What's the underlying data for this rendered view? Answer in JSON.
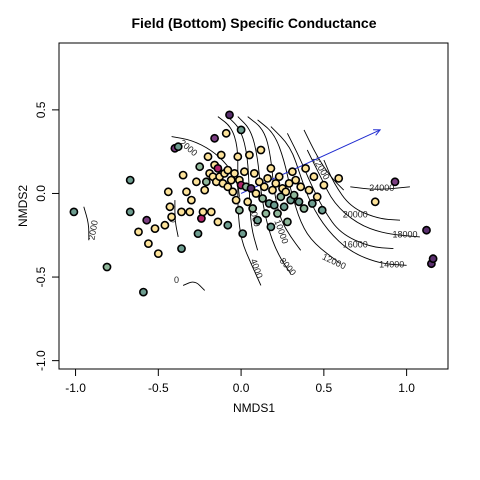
{
  "chart_data": {
    "type": "scatter",
    "title": "Field (Bottom) Specific Conductance",
    "xlabel": "NMDS1",
    "ylabel": "NMDS2",
    "xlim": [
      -1.1,
      1.25
    ],
    "ylim": [
      -1.05,
      0.9
    ],
    "x_ticks": [
      -1.0,
      -0.5,
      0.0,
      0.5,
      1.0
    ],
    "x_tick_labels": [
      "-1.0",
      "-0.5",
      "0.0",
      "0.5",
      "1.0"
    ],
    "y_ticks": [
      -1.0,
      -0.5,
      0.0,
      0.5
    ],
    "y_tick_labels": [
      "-1.0",
      "-0.5",
      "0.0",
      "0.5"
    ],
    "grid": false,
    "legend": "none",
    "colors": {
      "yellow": "#fde39a",
      "sage": "#8fb79a",
      "teal": "#6d9c8f",
      "purple": "#7b3f82",
      "dark_purple": "#5a2f6e",
      "magenta": "#b0226a"
    },
    "vector": {
      "x0": 0.0,
      "y0": 0.0,
      "x1": 0.84,
      "y1": 0.38,
      "color": "#1f2bd0"
    },
    "contours": [
      {
        "label": "0",
        "points": [
          [
            -0.35,
            -0.55
          ],
          [
            -0.28,
            -0.52
          ],
          [
            -0.22,
            -0.58
          ]
        ],
        "label_at": [
          -0.39,
          -0.52
        ],
        "angle": 0
      },
      {
        "label": "0",
        "points": [
          [
            -0.4,
            -0.04
          ],
          [
            -0.4,
            -0.16
          ],
          [
            -0.38,
            -0.26
          ]
        ],
        "label_at": [
          -0.41,
          -0.16
        ],
        "angle": -80
      },
      {
        "label": "2000",
        "points": [
          [
            -0.95,
            -0.08
          ],
          [
            -0.92,
            -0.18
          ],
          [
            -0.92,
            -0.28
          ]
        ],
        "label_at": [
          -0.89,
          -0.22
        ],
        "angle": -80
      },
      {
        "label": "2000",
        "points": [
          [
            -0.42,
            0.34
          ],
          [
            -0.3,
            0.32
          ],
          [
            -0.18,
            0.26
          ],
          [
            -0.08,
            0.17
          ],
          [
            -0.02,
            0.06
          ],
          [
            -0.01,
            -0.02
          ]
        ],
        "label_at": [
          -0.32,
          0.27
        ],
        "angle": 40
      },
      {
        "label": "4000",
        "points": [
          [
            -0.14,
            0.46
          ],
          [
            -0.06,
            0.4
          ],
          [
            -0.02,
            0.28
          ],
          [
            -0.02,
            0.1
          ],
          [
            -0.02,
            -0.1
          ],
          [
            0.0,
            -0.28
          ],
          [
            0.06,
            -0.42
          ],
          [
            0.12,
            -0.55
          ]
        ],
        "label_at": [
          0.09,
          -0.45
        ],
        "angle": 70
      },
      {
        "label": "6000",
        "points": [
          [
            -0.08,
            0.46
          ],
          [
            0.0,
            0.38
          ],
          [
            0.04,
            0.22
          ],
          [
            0.05,
            0.0
          ],
          [
            0.06,
            -0.2
          ],
          [
            0.1,
            -0.34
          ]
        ],
        "label_at": [
          0.08,
          -0.14
        ],
        "angle": 75
      },
      {
        "label": "8000",
        "points": [
          [
            -0.02,
            0.46
          ],
          [
            0.06,
            0.38
          ],
          [
            0.1,
            0.22
          ],
          [
            0.12,
            0.0
          ],
          [
            0.16,
            -0.2
          ],
          [
            0.22,
            -0.36
          ],
          [
            0.3,
            -0.48
          ]
        ],
        "label_at": [
          0.28,
          -0.44
        ],
        "angle": 50
      },
      {
        "label": "10000",
        "points": [
          [
            0.04,
            0.46
          ],
          [
            0.14,
            0.38
          ],
          [
            0.18,
            0.22
          ],
          [
            0.2,
            0.0
          ],
          [
            0.24,
            -0.16
          ],
          [
            0.3,
            -0.26
          ],
          [
            0.36,
            -0.34
          ]
        ],
        "label_at": [
          0.24,
          -0.23
        ],
        "angle": 70
      },
      {
        "label": "12000",
        "points": [
          [
            0.1,
            0.44
          ],
          [
            0.2,
            0.36
          ],
          [
            0.26,
            0.2
          ],
          [
            0.3,
            0.02
          ],
          [
            0.36,
            -0.18
          ],
          [
            0.44,
            -0.3
          ],
          [
            0.6,
            -0.42
          ]
        ],
        "label_at": [
          0.56,
          -0.41
        ],
        "angle": 25
      },
      {
        "label": "14000",
        "points": [
          [
            0.18,
            0.4
          ],
          [
            0.3,
            0.28
          ],
          [
            0.36,
            0.1
          ],
          [
            0.42,
            -0.06
          ],
          [
            0.52,
            -0.22
          ],
          [
            0.66,
            -0.35
          ],
          [
            0.84,
            -0.42
          ],
          [
            1.0,
            -0.43
          ]
        ],
        "label_at": [
          0.91,
          -0.43
        ],
        "angle": 0
      },
      {
        "label": "16000",
        "points": [
          [
            0.28,
            0.36
          ],
          [
            0.36,
            0.2
          ],
          [
            0.42,
            0.06
          ],
          [
            0.5,
            -0.1
          ],
          [
            0.6,
            -0.24
          ],
          [
            0.78,
            -0.32
          ],
          [
            0.92,
            -0.33
          ]
        ],
        "label_at": [
          0.69,
          -0.31
        ],
        "angle": 0
      },
      {
        "label": "18000",
        "points": [
          [
            0.4,
            0.26
          ],
          [
            0.48,
            0.1
          ],
          [
            0.56,
            -0.06
          ],
          [
            0.7,
            -0.18
          ],
          [
            0.86,
            -0.24
          ],
          [
            1.08,
            -0.26
          ]
        ],
        "label_at": [
          0.99,
          -0.25
        ],
        "angle": 0
      },
      {
        "label": "20000",
        "points": [
          [
            0.5,
            0.2
          ],
          [
            0.56,
            0.06
          ],
          [
            0.66,
            -0.08
          ],
          [
            0.82,
            -0.15
          ],
          [
            0.96,
            -0.16
          ]
        ],
        "label_at": [
          0.69,
          -0.13
        ],
        "angle": 0
      },
      {
        "label": "22000",
        "points": [
          [
            0.38,
            0.38
          ],
          [
            0.46,
            0.22
          ],
          [
            0.54,
            0.1
          ],
          [
            0.62,
            0.02
          ]
        ],
        "label_at": [
          0.48,
          0.15
        ],
        "angle": 60
      },
      {
        "label": "24000",
        "points": [
          [
            0.66,
            0.04
          ],
          [
            0.82,
            0.02
          ],
          [
            1.02,
            0.04
          ]
        ],
        "label_at": [
          0.85,
          0.03
        ],
        "angle": 0
      }
    ],
    "points": [
      {
        "x": -1.01,
        "y": -0.11,
        "c": "teal"
      },
      {
        "x": -0.81,
        "y": -0.44,
        "c": "sage"
      },
      {
        "x": -0.67,
        "y": 0.08,
        "c": "teal"
      },
      {
        "x": -0.67,
        "y": -0.11,
        "c": "teal"
      },
      {
        "x": -0.62,
        "y": -0.23,
        "c": "yellow"
      },
      {
        "x": -0.59,
        "y": -0.59,
        "c": "teal"
      },
      {
        "x": -0.57,
        "y": -0.16,
        "c": "purple"
      },
      {
        "x": -0.56,
        "y": -0.3,
        "c": "yellow"
      },
      {
        "x": -0.52,
        "y": -0.21,
        "c": "yellow"
      },
      {
        "x": -0.5,
        "y": -0.36,
        "c": "yellow"
      },
      {
        "x": -0.46,
        "y": -0.19,
        "c": "yellow"
      },
      {
        "x": -0.44,
        "y": 0.01,
        "c": "yellow"
      },
      {
        "x": -0.43,
        "y": -0.08,
        "c": "yellow"
      },
      {
        "x": -0.42,
        "y": -0.14,
        "c": "yellow"
      },
      {
        "x": -0.4,
        "y": 0.27,
        "c": "purple"
      },
      {
        "x": -0.38,
        "y": 0.28,
        "c": "teal"
      },
      {
        "x": -0.36,
        "y": -0.11,
        "c": "yellow"
      },
      {
        "x": -0.35,
        "y": 0.11,
        "c": "yellow"
      },
      {
        "x": -0.36,
        "y": -0.33,
        "c": "teal"
      },
      {
        "x": -0.33,
        "y": 0.01,
        "c": "yellow"
      },
      {
        "x": -0.31,
        "y": -0.11,
        "c": "yellow"
      },
      {
        "x": -0.3,
        "y": -0.04,
        "c": "yellow"
      },
      {
        "x": -0.27,
        "y": 0.07,
        "c": "yellow"
      },
      {
        "x": -0.26,
        "y": -0.24,
        "c": "teal"
      },
      {
        "x": -0.25,
        "y": 0.16,
        "c": "sage"
      },
      {
        "x": -0.24,
        "y": -0.15,
        "c": "magenta"
      },
      {
        "x": -0.23,
        "y": -0.11,
        "c": "yellow"
      },
      {
        "x": -0.22,
        "y": 0.02,
        "c": "yellow"
      },
      {
        "x": -0.21,
        "y": 0.07,
        "c": "sage"
      },
      {
        "x": -0.2,
        "y": 0.22,
        "c": "yellow"
      },
      {
        "x": -0.19,
        "y": 0.12,
        "c": "yellow"
      },
      {
        "x": -0.18,
        "y": -0.11,
        "c": "yellow"
      },
      {
        "x": -0.17,
        "y": 0.1,
        "c": "yellow"
      },
      {
        "x": -0.16,
        "y": 0.17,
        "c": "yellow"
      },
      {
        "x": -0.16,
        "y": 0.33,
        "c": "purple"
      },
      {
        "x": -0.15,
        "y": 0.07,
        "c": "yellow"
      },
      {
        "x": -0.14,
        "y": 0.15,
        "c": "magenta"
      },
      {
        "x": -0.14,
        "y": -0.17,
        "c": "yellow"
      },
      {
        "x": -0.13,
        "y": 0.1,
        "c": "yellow"
      },
      {
        "x": -0.12,
        "y": 0.23,
        "c": "yellow"
      },
      {
        "x": -0.11,
        "y": 0.06,
        "c": "yellow"
      },
      {
        "x": -0.1,
        "y": 0.12,
        "c": "yellow"
      },
      {
        "x": -0.09,
        "y": 0.36,
        "c": "yellow"
      },
      {
        "x": -0.08,
        "y": 0.04,
        "c": "yellow"
      },
      {
        "x": -0.08,
        "y": 0.14,
        "c": "yellow"
      },
      {
        "x": -0.08,
        "y": -0.19,
        "c": "teal"
      },
      {
        "x": -0.07,
        "y": 0.47,
        "c": "dark_purple"
      },
      {
        "x": -0.06,
        "y": 0.08,
        "c": "yellow"
      },
      {
        "x": -0.05,
        "y": 0.01,
        "c": "yellow"
      },
      {
        "x": -0.04,
        "y": 0.12,
        "c": "yellow"
      },
      {
        "x": -0.03,
        "y": -0.04,
        "c": "yellow"
      },
      {
        "x": -0.02,
        "y": 0.22,
        "c": "yellow"
      },
      {
        "x": -0.01,
        "y": 0.08,
        "c": "yellow"
      },
      {
        "x": -0.01,
        "y": -0.1,
        "c": "sage"
      },
      {
        "x": 0.0,
        "y": 0.05,
        "c": "magenta"
      },
      {
        "x": 0.0,
        "y": 0.38,
        "c": "teal"
      },
      {
        "x": 0.01,
        "y": -0.24,
        "c": "teal"
      },
      {
        "x": 0.02,
        "y": 0.13,
        "c": "yellow"
      },
      {
        "x": 0.03,
        "y": 0.04,
        "c": "sage"
      },
      {
        "x": 0.04,
        "y": -0.05,
        "c": "yellow"
      },
      {
        "x": 0.05,
        "y": 0.23,
        "c": "yellow"
      },
      {
        "x": 0.06,
        "y": 0.03,
        "c": "dark_purple"
      },
      {
        "x": 0.07,
        "y": -0.09,
        "c": "sage"
      },
      {
        "x": 0.08,
        "y": 0.12,
        "c": "yellow"
      },
      {
        "x": 0.09,
        "y": 0.0,
        "c": "yellow"
      },
      {
        "x": 0.1,
        "y": -0.16,
        "c": "teal"
      },
      {
        "x": 0.11,
        "y": 0.07,
        "c": "yellow"
      },
      {
        "x": 0.12,
        "y": 0.26,
        "c": "yellow"
      },
      {
        "x": 0.13,
        "y": -0.03,
        "c": "sage"
      },
      {
        "x": 0.14,
        "y": 0.04,
        "c": "yellow"
      },
      {
        "x": 0.15,
        "y": -0.12,
        "c": "sage"
      },
      {
        "x": 0.16,
        "y": 0.09,
        "c": "yellow"
      },
      {
        "x": 0.17,
        "y": -0.06,
        "c": "teal"
      },
      {
        "x": 0.18,
        "y": 0.15,
        "c": "yellow"
      },
      {
        "x": 0.18,
        "y": -0.2,
        "c": "teal"
      },
      {
        "x": 0.19,
        "y": 0.02,
        "c": "yellow"
      },
      {
        "x": 0.2,
        "y": -0.07,
        "c": "teal"
      },
      {
        "x": 0.21,
        "y": 0.06,
        "c": "yellow"
      },
      {
        "x": 0.22,
        "y": -0.12,
        "c": "sage"
      },
      {
        "x": 0.23,
        "y": 0.1,
        "c": "yellow"
      },
      {
        "x": 0.24,
        "y": -0.02,
        "c": "sage"
      },
      {
        "x": 0.25,
        "y": 0.03,
        "c": "yellow"
      },
      {
        "x": 0.26,
        "y": -0.08,
        "c": "teal"
      },
      {
        "x": 0.27,
        "y": 0.01,
        "c": "yellow"
      },
      {
        "x": 0.28,
        "y": -0.17,
        "c": "sage"
      },
      {
        "x": 0.29,
        "y": 0.06,
        "c": "yellow"
      },
      {
        "x": 0.3,
        "y": -0.04,
        "c": "teal"
      },
      {
        "x": 0.31,
        "y": 0.13,
        "c": "yellow"
      },
      {
        "x": 0.32,
        "y": -0.01,
        "c": "sage"
      },
      {
        "x": 0.33,
        "y": 0.08,
        "c": "yellow"
      },
      {
        "x": 0.35,
        "y": -0.05,
        "c": "teal"
      },
      {
        "x": 0.36,
        "y": 0.04,
        "c": "yellow"
      },
      {
        "x": 0.38,
        "y": -0.09,
        "c": "sage"
      },
      {
        "x": 0.39,
        "y": 0.15,
        "c": "yellow"
      },
      {
        "x": 0.41,
        "y": 0.02,
        "c": "yellow"
      },
      {
        "x": 0.43,
        "y": -0.06,
        "c": "teal"
      },
      {
        "x": 0.44,
        "y": 0.1,
        "c": "yellow"
      },
      {
        "x": 0.46,
        "y": -0.02,
        "c": "yellow"
      },
      {
        "x": 0.49,
        "y": -0.1,
        "c": "teal"
      },
      {
        "x": 0.5,
        "y": 0.05,
        "c": "yellow"
      },
      {
        "x": 0.59,
        "y": 0.09,
        "c": "yellow"
      },
      {
        "x": 0.81,
        "y": -0.05,
        "c": "yellow"
      },
      {
        "x": 0.93,
        "y": 0.07,
        "c": "purple"
      },
      {
        "x": 1.12,
        "y": -0.22,
        "c": "dark_purple"
      },
      {
        "x": 1.15,
        "y": -0.42,
        "c": "dark_purple"
      },
      {
        "x": 1.16,
        "y": -0.39,
        "c": "dark_purple"
      }
    ]
  }
}
